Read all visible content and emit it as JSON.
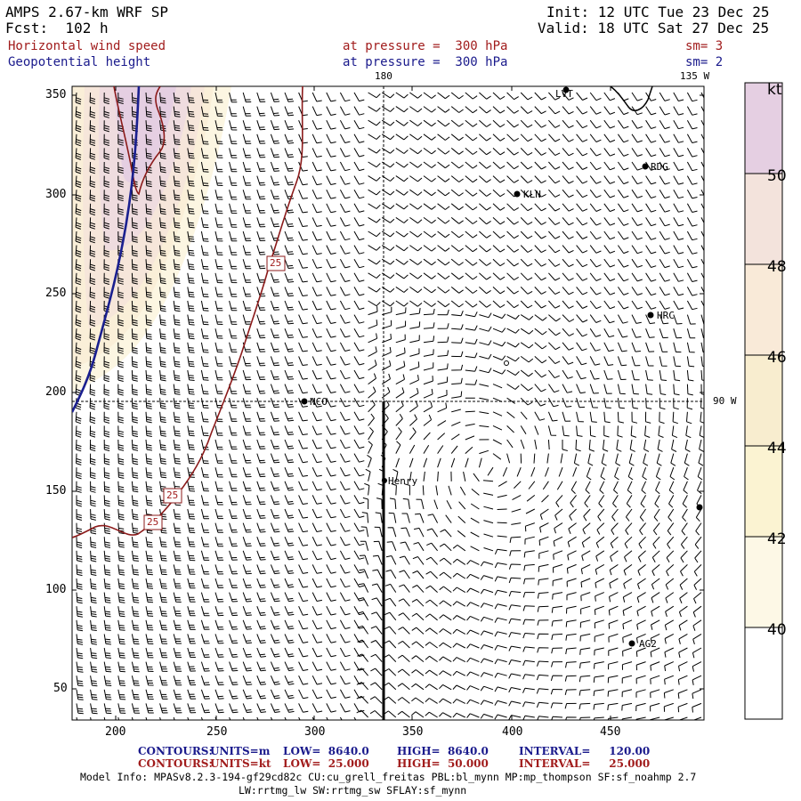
{
  "header": {
    "model_title": "AMPS 2.67-km WRF SP",
    "forecast": "Fcst:  102 h",
    "init": "Init: 12 UTC Tue 23 Dec 25",
    "valid": "Valid: 18 UTC Sat 27 Dec 25",
    "field1_name": "Horizontal wind speed",
    "field1_level": "at pressure =  300 hPa",
    "field1_smooth": "sm= 3",
    "field2_name": "Geopotential height",
    "field2_level": "at pressure =  300 hPa",
    "field2_smooth": "sm= 2"
  },
  "map": {
    "x_ticks": [
      "200",
      "250",
      "300",
      "350",
      "400",
      "450"
    ],
    "y_ticks": [
      "350",
      "300",
      "250",
      "200",
      "150",
      "100",
      "50"
    ],
    "meridian_top_label": "180",
    "meridian_corner_label": "135 W",
    "parallel_label": "90 W",
    "stations": [
      "LVT",
      "RDG",
      "KLN",
      "HRC",
      "NCO",
      "Henry",
      "AG2"
    ],
    "contour_labels": [
      "25",
      "25",
      "25"
    ]
  },
  "colorbar": {
    "units": "kt",
    "labels": [
      "50",
      "48",
      "46",
      "44",
      "42",
      "40"
    ],
    "colors": [
      "#e5cfe2",
      "#f3e3dc",
      "#f9ead8",
      "#f8edcf",
      "#fbf3d2",
      "#fdf8e6",
      "#ffffff"
    ]
  },
  "footer": {
    "line1_label": "CONTOURS:",
    "line1_units": "UNITS=m",
    "line1_low": "LOW=  8640.0",
    "line1_high": "HIGH=  8640.0",
    "line1_interval": "INTERVAL=     120.00",
    "line2_label": "CONTOURS:",
    "line2_units": "UNITS=kt",
    "line2_low": "LOW=  25.000",
    "line2_high": "HIGH=  50.000",
    "line2_interval": "INTERVAL=     25.000",
    "model_info": "Model Info: MPASv8.2.3-194-gf29cd82c CU:cu_grell_freitas PBL:bl_mynn MP:mp_thompson SF:sf_noahmp 2.7",
    "model_info2": "LW:rrtmg_lw SW:rrtmg_sw SFLAY:sf_mynn"
  }
}
